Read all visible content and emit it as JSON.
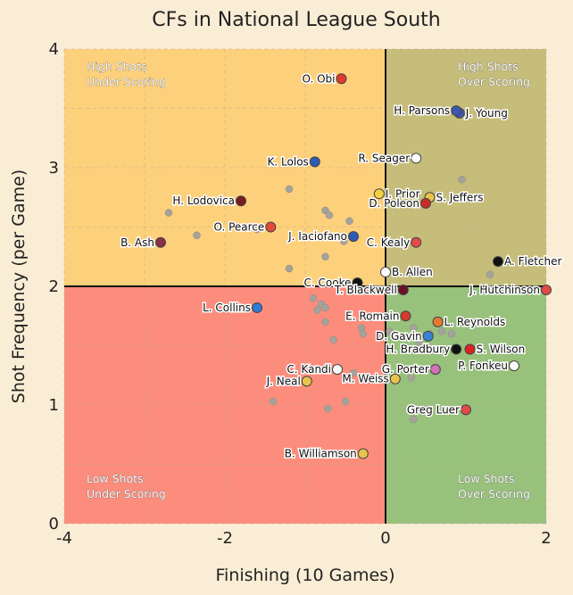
{
  "chart_data": {
    "type": "scatter",
    "title": "CFs in National League South",
    "xlabel": "Finishing (10 Games)",
    "ylabel": "Shot Frequency (per Game)",
    "xlim": [
      -4,
      2
    ],
    "ylim": [
      0,
      4
    ],
    "xticks": [
      "-4",
      "-2",
      "0",
      "2"
    ],
    "yticks": [
      "0",
      "1",
      "2",
      "3",
      "4"
    ],
    "grid": true,
    "quadrant_colors": {
      "top_left": "#fdd07c",
      "top_right": "#c6bd7b",
      "bottom_left": "#fc8d7d",
      "bottom_right": "#98c17c"
    },
    "quadrants": [
      {
        "pos": "top-left",
        "lines": [
          "High Shots",
          "Under Scoring"
        ]
      },
      {
        "pos": "top-right",
        "lines": [
          "High Shots",
          "Over Scoring"
        ]
      },
      {
        "pos": "bottom-left",
        "lines": [
          "Low Shots",
          "Under Scoring"
        ]
      },
      {
        "pos": "bottom-right",
        "lines": [
          "Low Shots",
          "Over Scoring"
        ]
      }
    ],
    "labeled_points": [
      {
        "name": "O. Obi",
        "x": -0.55,
        "y": 3.75,
        "color": "#e03a30",
        "side": "left"
      },
      {
        "name": "J. Young",
        "x": 0.92,
        "y": 3.46,
        "color": "#3f56b0",
        "side": "right"
      },
      {
        "name": "H. Parsons",
        "x": 0.88,
        "y": 3.48,
        "color": "#3f56b0",
        "side": "left"
      },
      {
        "name": "K. Lolos",
        "x": -0.88,
        "y": 3.05,
        "color": "#2e5bb8",
        "side": "left"
      },
      {
        "name": "R. Seager",
        "x": 0.38,
        "y": 3.08,
        "color": "#ffffff",
        "side": "left"
      },
      {
        "name": "J. Prior",
        "x": -0.08,
        "y": 2.78,
        "color": "#f4d140",
        "side": "right"
      },
      {
        "name": "S. Jeffers",
        "x": 0.55,
        "y": 2.75,
        "color": "#e8c44a",
        "side": "right"
      },
      {
        "name": "D. Poleon",
        "x": 0.5,
        "y": 2.7,
        "color": "#c92a2a",
        "side": "left"
      },
      {
        "name": "H. Lodovica",
        "x": -1.8,
        "y": 2.72,
        "color": "#7a1a22",
        "side": "left"
      },
      {
        "name": "O. Pearce",
        "x": -1.43,
        "y": 2.5,
        "color": "#e34a3c",
        "side": "left"
      },
      {
        "name": "J. Iaciofano",
        "x": -0.4,
        "y": 2.42,
        "color": "#2e5bb8",
        "side": "left"
      },
      {
        "name": "C. Kealy",
        "x": 0.38,
        "y": 2.37,
        "color": "#e34a48",
        "side": "left"
      },
      {
        "name": "B. Ash",
        "x": -2.8,
        "y": 2.37,
        "color": "#8a3048",
        "side": "left"
      },
      {
        "name": "A. Fletcher",
        "x": 1.4,
        "y": 2.21,
        "color": "#111111",
        "side": "right"
      },
      {
        "name": "B. Allen",
        "x": 0.0,
        "y": 2.12,
        "color": "#ffffff",
        "side": "right"
      },
      {
        "name": "C. Cooke",
        "x": -0.35,
        "y": 2.03,
        "color": "#111111",
        "side": "left"
      },
      {
        "name": "T. Blackwell",
        "x": 0.22,
        "y": 1.97,
        "color": "#6b1020",
        "side": "left"
      },
      {
        "name": "J. Hutchinson",
        "x": 2.0,
        "y": 1.97,
        "color": "#e34a48",
        "side": "left"
      },
      {
        "name": "L. Collins",
        "x": -1.6,
        "y": 1.82,
        "color": "#2e7bd8",
        "side": "left"
      },
      {
        "name": "E. Romain",
        "x": 0.25,
        "y": 1.75,
        "color": "#d63a30",
        "side": "left"
      },
      {
        "name": "L. Reynolds",
        "x": 0.65,
        "y": 1.7,
        "color": "#e8782e",
        "side": "right"
      },
      {
        "name": "D. Gavin",
        "x": 0.53,
        "y": 1.58,
        "color": "#3a82d8",
        "side": "left"
      },
      {
        "name": "S. Wilson",
        "x": 1.05,
        "y": 1.47,
        "color": "#e02020",
        "side": "right"
      },
      {
        "name": "H. Bradbury",
        "x": 0.88,
        "y": 1.47,
        "color": "#111111",
        "side": "left"
      },
      {
        "name": "P. Fonkeu",
        "x": 1.6,
        "y": 1.33,
        "color": "#ffffff",
        "side": "left"
      },
      {
        "name": "C. Kandi",
        "x": -0.6,
        "y": 1.3,
        "color": "#ffffff",
        "side": "left"
      },
      {
        "name": "G. Porter",
        "x": 0.62,
        "y": 1.3,
        "color": "#d270b8",
        "side": "left"
      },
      {
        "name": "J. Neal",
        "x": -0.98,
        "y": 1.2,
        "color": "#e8c44a",
        "side": "left"
      },
      {
        "name": "M. Weiss",
        "x": 0.12,
        "y": 1.22,
        "color": "#e8c44a",
        "side": "left"
      },
      {
        "name": "Greg Luer",
        "x": 1.0,
        "y": 0.96,
        "color": "#e34a48",
        "side": "left"
      },
      {
        "name": "B. Williamson",
        "x": -0.28,
        "y": 0.59,
        "color": "#e8c44a",
        "side": "left"
      }
    ],
    "background_points": [
      [
        -1.2,
        2.82
      ],
      [
        -2.7,
        2.62
      ],
      [
        -0.75,
        2.64
      ],
      [
        -0.7,
        2.6
      ],
      [
        -0.45,
        2.55
      ],
      [
        -2.35,
        2.43
      ],
      [
        -1.6,
        2.48
      ],
      [
        -0.52,
        2.38
      ],
      [
        -0.75,
        2.25
      ],
      [
        -1.2,
        2.15
      ],
      [
        -0.9,
        1.9
      ],
      [
        -0.8,
        1.85
      ],
      [
        -0.75,
        1.82
      ],
      [
        -0.85,
        1.8
      ],
      [
        -0.75,
        1.7
      ],
      [
        -0.65,
        1.55
      ],
      [
        -0.3,
        1.65
      ],
      [
        -0.28,
        1.6
      ],
      [
        0.05,
        1.62
      ],
      [
        0.35,
        1.65
      ],
      [
        0.55,
        1.6
      ],
      [
        0.7,
        1.62
      ],
      [
        0.82,
        1.6
      ],
      [
        -0.4,
        1.27
      ],
      [
        0.32,
        1.23
      ],
      [
        -1.4,
        1.03
      ],
      [
        -0.5,
        1.03
      ],
      [
        -0.72,
        0.97
      ],
      [
        0.35,
        0.88
      ],
      [
        0.95,
        2.9
      ],
      [
        1.3,
        2.1
      ],
      [
        0.42,
        1.52
      ]
    ]
  }
}
